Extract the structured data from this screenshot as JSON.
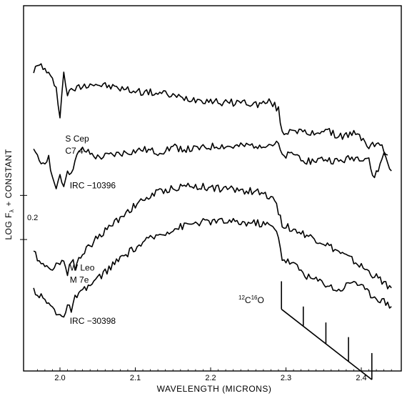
{
  "chart_data": {
    "type": "line",
    "title": "",
    "xlabel": "WAVELENGTH  (MICRONS)",
    "ylabel": "LOG F",
    "ylabel_sub": "λ",
    "ylabel_suffix": " + CONSTANT",
    "xlim": [
      1.955,
      2.445
    ],
    "ylim": [
      0,
      10
    ],
    "x_ticks": [
      2.0,
      2.1,
      2.2,
      2.3,
      2.4
    ],
    "x_tick_labels": [
      "2.0",
      "2.1",
      "2.2",
      "2.3",
      "2.4"
    ],
    "grid": false,
    "scale_bar": {
      "label": "0.2",
      "low": 2.82,
      "high": 4.48
    },
    "series": [
      {
        "name": "S Cep",
        "name_line2": "C7,4",
        "label_x": 2.007,
        "label_y": 6.5,
        "points": [
          [
            1.965,
            9.2
          ],
          [
            1.975,
            9.4
          ],
          [
            1.985,
            9.0
          ],
          [
            1.995,
            8.6
          ],
          [
            2.0,
            7.4
          ],
          [
            2.005,
            9.1
          ],
          [
            2.01,
            8.3
          ],
          [
            2.02,
            8.5
          ],
          [
            2.04,
            8.7
          ],
          [
            2.06,
            8.6
          ],
          [
            2.08,
            8.5
          ],
          [
            2.1,
            8.4
          ],
          [
            2.12,
            8.35
          ],
          [
            2.14,
            8.3
          ],
          [
            2.16,
            8.15
          ],
          [
            2.18,
            8.1
          ],
          [
            2.2,
            8.05
          ],
          [
            2.22,
            7.95
          ],
          [
            2.24,
            8.0
          ],
          [
            2.26,
            7.9
          ],
          [
            2.28,
            8.0
          ],
          [
            2.29,
            7.7
          ],
          [
            2.295,
            6.8
          ],
          [
            2.31,
            7.0
          ],
          [
            2.33,
            6.75
          ],
          [
            2.35,
            6.95
          ],
          [
            2.37,
            6.7
          ],
          [
            2.39,
            6.8
          ],
          [
            2.405,
            6.55
          ],
          [
            2.41,
            6.3
          ],
          [
            2.42,
            6.45
          ],
          [
            2.43,
            6.2
          ],
          [
            2.435,
            6.0
          ]
        ]
      },
      {
        "name": "IRC −10396",
        "name_line2": "",
        "label_x": 2.013,
        "label_y": 4.75,
        "points": [
          [
            1.965,
            6.1
          ],
          [
            1.975,
            5.7
          ],
          [
            1.985,
            5.9
          ],
          [
            1.99,
            5.2
          ],
          [
            1.995,
            4.6
          ],
          [
            2.0,
            5.3
          ],
          [
            2.005,
            4.8
          ],
          [
            2.01,
            5.5
          ],
          [
            2.015,
            5.2
          ],
          [
            2.02,
            5.9
          ],
          [
            2.03,
            6.2
          ],
          [
            2.05,
            5.9
          ],
          [
            2.07,
            6.0
          ],
          [
            2.09,
            6.1
          ],
          [
            2.11,
            6.2
          ],
          [
            2.13,
            6.1
          ],
          [
            2.15,
            6.3
          ],
          [
            2.17,
            6.2
          ],
          [
            2.19,
            6.25
          ],
          [
            2.21,
            6.35
          ],
          [
            2.23,
            6.3
          ],
          [
            2.25,
            6.35
          ],
          [
            2.27,
            6.4
          ],
          [
            2.29,
            6.4
          ],
          [
            2.295,
            5.9
          ],
          [
            2.31,
            6.05
          ],
          [
            2.33,
            5.75
          ],
          [
            2.35,
            5.85
          ],
          [
            2.37,
            5.75
          ],
          [
            2.39,
            5.9
          ],
          [
            2.41,
            5.9
          ],
          [
            2.415,
            5.1
          ],
          [
            2.425,
            5.6
          ],
          [
            2.43,
            6.1
          ],
          [
            2.44,
            5.4
          ]
        ]
      },
      {
        "name": "W Leo",
        "name_line2": "M 7e",
        "label_x": 2.013,
        "label_y": 1.65,
        "points": [
          [
            1.965,
            2.3
          ],
          [
            1.975,
            2.0
          ],
          [
            1.985,
            1.7
          ],
          [
            1.995,
            1.9
          ],
          [
            2.005,
            2.0
          ],
          [
            2.01,
            1.6
          ],
          [
            2.015,
            2.1
          ],
          [
            2.02,
            1.8
          ],
          [
            2.03,
            2.3
          ],
          [
            2.05,
            2.9
          ],
          [
            2.07,
            3.4
          ],
          [
            2.09,
            3.9
          ],
          [
            2.11,
            4.3
          ],
          [
            2.13,
            4.6
          ],
          [
            2.15,
            4.75
          ],
          [
            2.17,
            4.85
          ],
          [
            2.19,
            4.8
          ],
          [
            2.21,
            4.75
          ],
          [
            2.23,
            4.7
          ],
          [
            2.25,
            4.65
          ],
          [
            2.27,
            4.55
          ],
          [
            2.285,
            4.4
          ],
          [
            2.29,
            3.8
          ],
          [
            2.295,
            3.4
          ],
          [
            2.31,
            3.2
          ],
          [
            2.33,
            2.95
          ],
          [
            2.35,
            2.7
          ],
          [
            2.37,
            2.35
          ],
          [
            2.39,
            2.0
          ],
          [
            2.41,
            1.6
          ],
          [
            2.43,
            1.2
          ],
          [
            2.44,
            1.0
          ]
        ]
      },
      {
        "name": "IRC −30398",
        "name_line2": "",
        "label_x": 2.013,
        "label_y": -0.35,
        "points": [
          [
            1.965,
            0.95
          ],
          [
            1.975,
            0.65
          ],
          [
            1.985,
            0.4
          ],
          [
            1.99,
            0.25
          ],
          [
            1.995,
            0.05
          ],
          [
            2.0,
            0.1
          ],
          [
            2.005,
            -0.1
          ],
          [
            2.01,
            0.25
          ],
          [
            2.015,
            0.2
          ],
          [
            2.02,
            0.6
          ],
          [
            2.04,
            1.1
          ],
          [
            2.06,
            1.6
          ],
          [
            2.08,
            2.1
          ],
          [
            2.1,
            2.5
          ],
          [
            2.12,
            2.85
          ],
          [
            2.14,
            3.1
          ],
          [
            2.16,
            3.3
          ],
          [
            2.18,
            3.45
          ],
          [
            2.2,
            3.5
          ],
          [
            2.22,
            3.5
          ],
          [
            2.24,
            3.45
          ],
          [
            2.26,
            3.45
          ],
          [
            2.28,
            3.35
          ],
          [
            2.29,
            3.0
          ],
          [
            2.295,
            2.1
          ],
          [
            2.31,
            1.9
          ],
          [
            2.33,
            1.4
          ],
          [
            2.35,
            1.2
          ],
          [
            2.37,
            0.9
          ],
          [
            2.39,
            1.3
          ],
          [
            2.41,
            0.8
          ],
          [
            2.43,
            0.5
          ],
          [
            2.44,
            0.3
          ]
        ]
      }
    ],
    "annotation": {
      "label_main": "C",
      "label_sup1": "12",
      "label_sup2": "16",
      "label_end": "O",
      "bandheads": [
        2.294,
        2.323,
        2.353,
        2.383,
        2.414
      ],
      "top_y": [
        1.25,
        0.3,
        -0.3,
        -0.85,
        -1.45
      ],
      "diag_start_y": 0.2,
      "diag_end_y": -2.45
    }
  }
}
